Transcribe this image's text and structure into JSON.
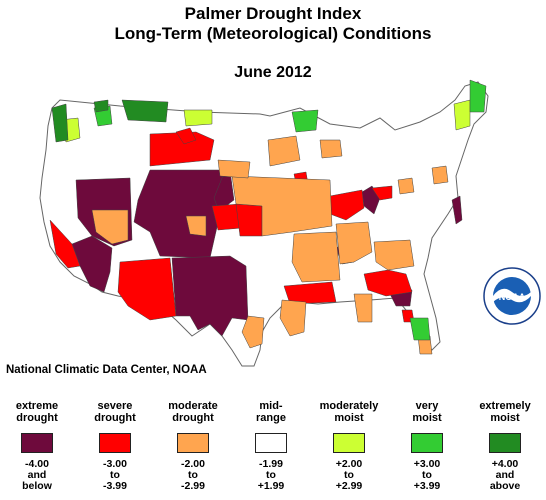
{
  "header": {
    "title": "Palmer Drought Index",
    "subtitle": "Long-Term (Meteorological) Conditions",
    "date": "June 2012"
  },
  "credit": "National Climatic Data Center, NOAA",
  "logo_text": "NOAA",
  "colors": {
    "extreme_drought": "#6e0a3c",
    "severe_drought": "#ff0000",
    "moderate_drought": "#ffa54f",
    "mid_range": "#ffffff",
    "moderately_moist": "#ccff33",
    "very_moist": "#33cc33",
    "extremely_moist": "#228b22"
  },
  "legend": [
    {
      "label1": "extreme",
      "label2": "drought",
      "r1": "-4.00",
      "r2": "and",
      "r3": "below",
      "color": "#6e0a3c"
    },
    {
      "label1": "severe",
      "label2": "drought",
      "r1": "-3.00",
      "r2": "to",
      "r3": "-3.99",
      "color": "#ff0000"
    },
    {
      "label1": "moderate",
      "label2": "drought",
      "r1": "-2.00",
      "r2": "to",
      "r3": "-2.99",
      "color": "#ffa54f"
    },
    {
      "label1": "mid-",
      "label2": "range",
      "r1": "-1.99",
      "r2": "to",
      "r3": "+1.99",
      "color": "#ffffff"
    },
    {
      "label1": "moderately",
      "label2": "moist",
      "r1": "+2.00",
      "r2": "to",
      "r3": "+2.99",
      "color": "#ccff33"
    },
    {
      "label1": "very",
      "label2": "moist",
      "r1": "+3.00",
      "r2": "to",
      "r3": "+3.99",
      "color": "#33cc33"
    },
    {
      "label1": "extremely",
      "label2": "moist",
      "r1": "+4.00",
      "r2": "and",
      "r3": "above",
      "color": "#228b22"
    }
  ]
}
